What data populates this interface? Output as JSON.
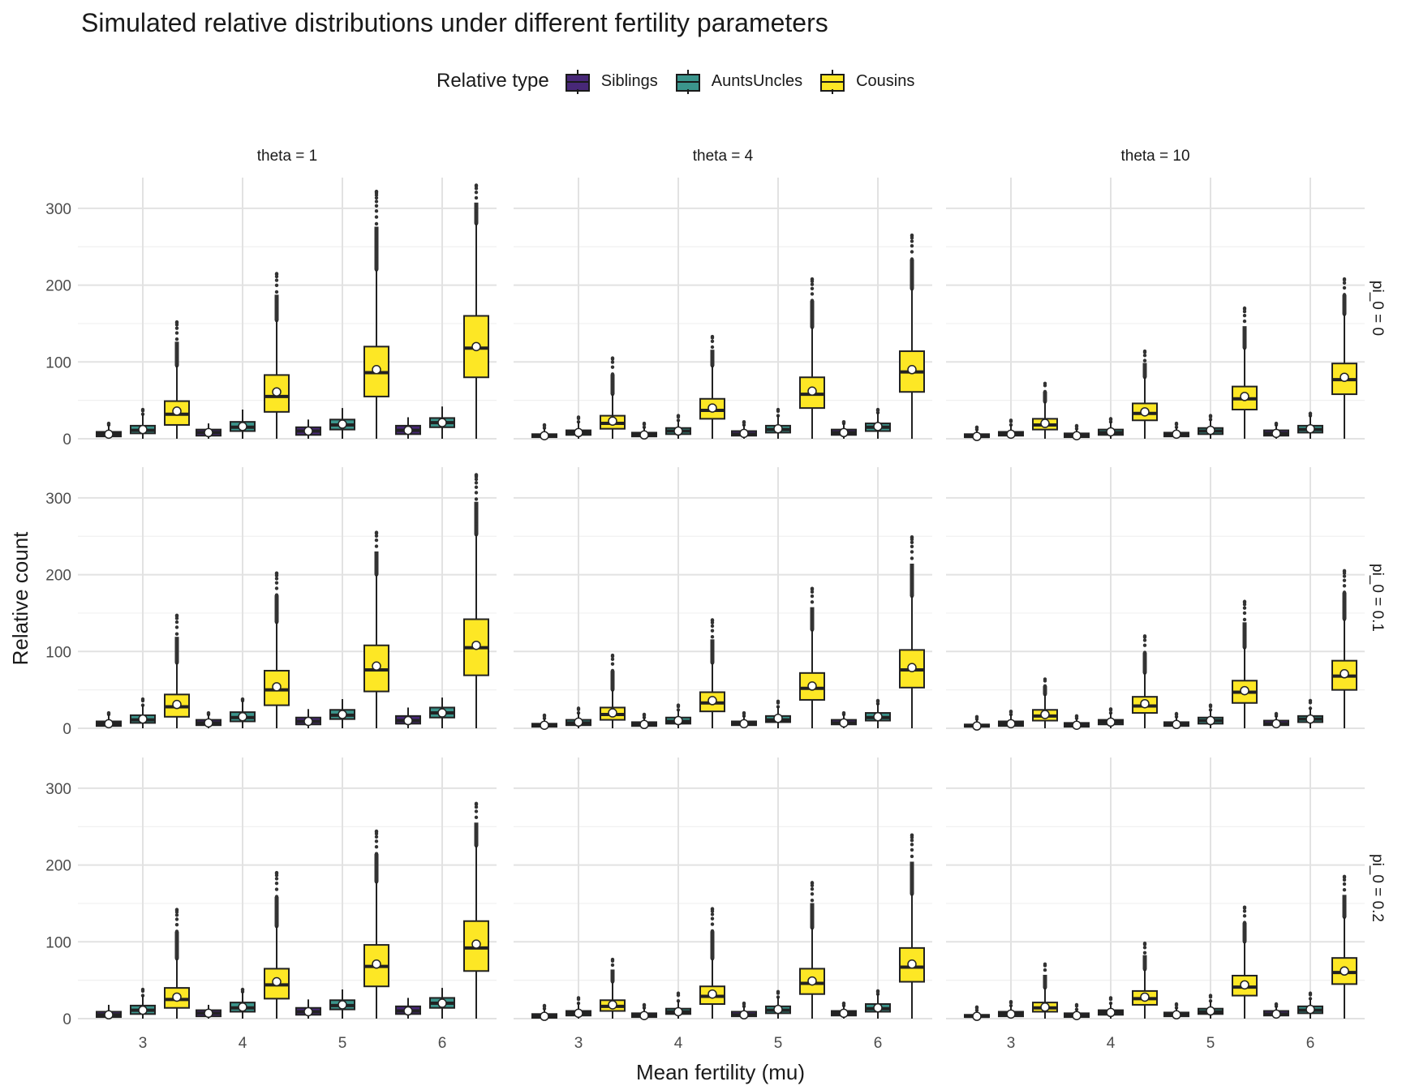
{
  "chart_data": {
    "type": "box",
    "title": "Simulated relative distributions under different fertility parameters",
    "xlabel": "Mean fertility (mu)",
    "ylabel": "Relative count",
    "legend_title": "Relative type",
    "legend_position": "top",
    "series_names": [
      "Siblings",
      "AuntsUncles",
      "Cousins"
    ],
    "series_colors": [
      "#482878",
      "#3b958c",
      "#fde725"
    ],
    "x_categories": [
      "3",
      "4",
      "5",
      "6"
    ],
    "ylim": [
      0,
      340
    ],
    "y_ticks": [
      0,
      100,
      200,
      300
    ],
    "grid": true,
    "col_facets": [
      "theta = 1",
      "theta = 4",
      "theta = 10"
    ],
    "row_facets": [
      "pi_0 = 0",
      "pi_0 = 0.1",
      "pi_0 = 0.2"
    ],
    "stats_order": [
      "whisker_low",
      "q1",
      "median",
      "q3",
      "whisker_high",
      "mean",
      "max_outlier"
    ],
    "panels": [
      {
        "row": 0,
        "col": 0,
        "boxes": [
          [
            [
              0,
              3,
              6,
              9,
              18,
              6,
              20
            ],
            [
              0,
              7,
              11,
              17,
              32,
              12,
              38
            ],
            [
              0,
              18,
              32,
              49,
              95,
              36,
              152
            ]
          ],
          [
            [
              0,
              4,
              8,
              12,
              20,
              8,
              20
            ],
            [
              0,
              10,
              15,
              22,
              38,
              16,
              38
            ],
            [
              0,
              35,
              55,
              83,
              154,
              61,
              215
            ]
          ],
          [
            [
              0,
              5,
              10,
              15,
              25,
              10,
              25
            ],
            [
              0,
              12,
              18,
              25,
              40,
              19,
              40
            ],
            [
              0,
              55,
              86,
              120,
              220,
              90,
              322
            ]
          ],
          [
            [
              0,
              6,
              11,
              17,
              28,
              11,
              28
            ],
            [
              0,
              15,
              21,
              27,
              42,
              21,
              42
            ],
            [
              0,
              80,
              118,
              160,
              280,
              120,
              330
            ]
          ]
        ]
      },
      {
        "row": 0,
        "col": 1,
        "boxes": [
          [
            [
              0,
              2,
              4,
              6,
              14,
              4,
              18
            ],
            [
              0,
              5,
              8,
              11,
              22,
              8,
              28
            ],
            [
              0,
              13,
              20,
              30,
              58,
              23,
              105
            ]
          ],
          [
            [
              0,
              3,
              5,
              8,
              15,
              5,
              20
            ],
            [
              0,
              6,
              10,
              14,
              24,
              10,
              30
            ],
            [
              0,
              26,
              37,
              52,
              95,
              40,
              133
            ]
          ],
          [
            [
              0,
              4,
              6,
              10,
              18,
              7,
              22
            ],
            [
              0,
              8,
              12,
              17,
              30,
              13,
              38
            ],
            [
              0,
              40,
              58,
              80,
              145,
              62,
              208
            ]
          ],
          [
            [
              0,
              5,
              8,
              12,
              20,
              8,
              22
            ],
            [
              0,
              10,
              15,
              20,
              34,
              16,
              38
            ],
            [
              0,
              61,
              87,
              114,
              195,
              90,
              265
            ]
          ]
        ]
      },
      {
        "row": 0,
        "col": 2,
        "boxes": [
          [
            [
              0,
              2,
              3,
              6,
              12,
              3,
              15
            ],
            [
              0,
              4,
              6,
              9,
              18,
              6,
              24
            ],
            [
              0,
              12,
              18,
              26,
              48,
              20,
              72
            ]
          ],
          [
            [
              0,
              2,
              4,
              7,
              13,
              4,
              17
            ],
            [
              0,
              5,
              8,
              12,
              22,
              9,
              26
            ],
            [
              0,
              24,
              33,
              46,
              80,
              35,
              114
            ]
          ],
          [
            [
              0,
              3,
              5,
              8,
              15,
              6,
              20
            ],
            [
              0,
              6,
              10,
              14,
              25,
              11,
              30
            ],
            [
              0,
              38,
              52,
              68,
              118,
              55,
              170
            ]
          ],
          [
            [
              0,
              4,
              7,
              11,
              18,
              7,
              20
            ],
            [
              0,
              8,
              12,
              17,
              30,
              13,
              33
            ],
            [
              0,
              58,
              77,
              98,
              162,
              80,
              208
            ]
          ]
        ]
      },
      {
        "row": 1,
        "col": 0,
        "boxes": [
          [
            [
              0,
              3,
              6,
              9,
              18,
              6,
              20
            ],
            [
              0,
              7,
              11,
              17,
              30,
              12,
              38
            ],
            [
              0,
              15,
              28,
              44,
              85,
              31,
              147
            ]
          ],
          [
            [
              0,
              4,
              7,
              11,
              18,
              7,
              20
            ],
            [
              0,
              9,
              14,
              21,
              36,
              15,
              38
            ],
            [
              0,
              30,
              50,
              75,
              138,
              54,
              202
            ]
          ],
          [
            [
              0,
              5,
              9,
              14,
              25,
              9,
              25
            ],
            [
              0,
              12,
              17,
              24,
              38,
              18,
              38
            ],
            [
              0,
              48,
              76,
              108,
              200,
              81,
              255
            ]
          ],
          [
            [
              0,
              6,
              10,
              16,
              27,
              10,
              27
            ],
            [
              0,
              14,
              20,
              27,
              40,
              20,
              40
            ],
            [
              0,
              69,
              105,
              142,
              252,
              108,
              330
            ]
          ]
        ]
      },
      {
        "row": 1,
        "col": 1,
        "boxes": [
          [
            [
              0,
              2,
              4,
              6,
              13,
              4,
              17
            ],
            [
              0,
              4,
              7,
              11,
              20,
              8,
              26
            ],
            [
              0,
              11,
              18,
              27,
              50,
              20,
              95
            ]
          ],
          [
            [
              0,
              3,
              5,
              8,
              14,
              5,
              18
            ],
            [
              0,
              6,
              9,
              14,
              24,
              10,
              30
            ],
            [
              0,
              22,
              33,
              47,
              85,
              36,
              141
            ]
          ],
          [
            [
              0,
              4,
              6,
              9,
              16,
              6,
              20
            ],
            [
              0,
              8,
              11,
              16,
              28,
              13,
              35
            ],
            [
              0,
              37,
              52,
              72,
              128,
              55,
              182
            ]
          ],
          [
            [
              0,
              5,
              7,
              11,
              18,
              7,
              20
            ],
            [
              0,
              10,
              14,
              20,
              32,
              15,
              36
            ],
            [
              0,
              53,
              76,
              102,
              172,
              79,
              249
            ]
          ]
        ]
      },
      {
        "row": 1,
        "col": 2,
        "boxes": [
          [
            [
              0,
              2,
              3,
              5,
              12,
              3,
              15
            ],
            [
              0,
              3,
              6,
              9,
              18,
              6,
              22
            ],
            [
              0,
              10,
              16,
              24,
              44,
              18,
              64
            ]
          ],
          [
            [
              0,
              2,
              4,
              7,
              13,
              4,
              16
            ],
            [
              0,
              5,
              8,
              11,
              20,
              8,
              25
            ],
            [
              0,
              20,
              29,
              41,
              72,
              32,
              120
            ]
          ],
          [
            [
              0,
              3,
              5,
              8,
              15,
              5,
              19
            ],
            [
              0,
              6,
              10,
              14,
              24,
              10,
              30
            ],
            [
              0,
              33,
              47,
              62,
              105,
              49,
              165
            ]
          ],
          [
            [
              0,
              4,
              6,
              10,
              16,
              6,
              19
            ],
            [
              0,
              8,
              12,
              16,
              26,
              12,
              36
            ],
            [
              0,
              50,
              68,
              88,
              142,
              71,
              205
            ]
          ]
        ]
      },
      {
        "row": 2,
        "col": 0,
        "boxes": [
          [
            [
              0,
              2,
              5,
              9,
              18,
              5,
              18
            ],
            [
              0,
              6,
              11,
              17,
              30,
              11,
              38
            ],
            [
              0,
              14,
              25,
              40,
              78,
              28,
              142
            ]
          ],
          [
            [
              0,
              3,
              7,
              11,
              18,
              7,
              18
            ],
            [
              0,
              9,
              14,
              21,
              35,
              15,
              38
            ],
            [
              0,
              26,
              44,
              65,
              120,
              48,
              190
            ]
          ],
          [
            [
              0,
              5,
              9,
              14,
              25,
              9,
              25
            ],
            [
              0,
              12,
              17,
              24,
              38,
              18,
              38
            ],
            [
              0,
              42,
              68,
              96,
              178,
              71,
              244
            ]
          ],
          [
            [
              0,
              6,
              10,
              16,
              27,
              10,
              27
            ],
            [
              0,
              14,
              20,
              27,
              40,
              20,
              40
            ],
            [
              0,
              62,
              92,
              127,
              225,
              97,
              280
            ]
          ]
        ]
      },
      {
        "row": 2,
        "col": 1,
        "boxes": [
          [
            [
              0,
              1,
              3,
              6,
              13,
              3,
              17
            ],
            [
              0,
              4,
              7,
              10,
              20,
              7,
              27
            ],
            [
              0,
              10,
              16,
              24,
              48,
              18,
              77
            ]
          ],
          [
            [
              0,
              2,
              4,
              7,
              14,
              4,
              18
            ],
            [
              0,
              6,
              9,
              13,
              23,
              9,
              33
            ],
            [
              0,
              19,
              29,
              42,
              78,
              32,
              143
            ]
          ],
          [
            [
              0,
              3,
              5,
              9,
              16,
              5,
              20
            ],
            [
              0,
              7,
              11,
              16,
              28,
              12,
              35
            ],
            [
              0,
              32,
              46,
              65,
              118,
              49,
              177
            ]
          ],
          [
            [
              0,
              4,
              7,
              10,
              17,
              7,
              20
            ],
            [
              0,
              9,
              13,
              19,
              32,
              14,
              36
            ],
            [
              0,
              48,
              67,
              92,
              162,
              71,
              239
            ]
          ]
        ]
      },
      {
        "row": 2,
        "col": 2,
        "boxes": [
          [
            [
              0,
              2,
              3,
              5,
              11,
              3,
              15
            ],
            [
              0,
              3,
              6,
              9,
              17,
              6,
              22
            ],
            [
              0,
              9,
              14,
              21,
              40,
              15,
              71
            ]
          ],
          [
            [
              0,
              2,
              4,
              7,
              12,
              4,
              18
            ],
            [
              0,
              5,
              8,
              11,
              20,
              8,
              27
            ],
            [
              0,
              18,
              26,
              36,
              64,
              28,
              98
            ]
          ],
          [
            [
              0,
              3,
              5,
              8,
              14,
              5,
              19
            ],
            [
              0,
              6,
              9,
              13,
              23,
              10,
              30
            ],
            [
              0,
              30,
              41,
              56,
              100,
              44,
              145
            ]
          ],
          [
            [
              0,
              4,
              6,
              10,
              16,
              6,
              19
            ],
            [
              0,
              7,
              11,
              16,
              26,
              12,
              33
            ],
            [
              0,
              45,
              60,
              79,
              132,
              62,
              185
            ]
          ]
        ]
      }
    ]
  }
}
